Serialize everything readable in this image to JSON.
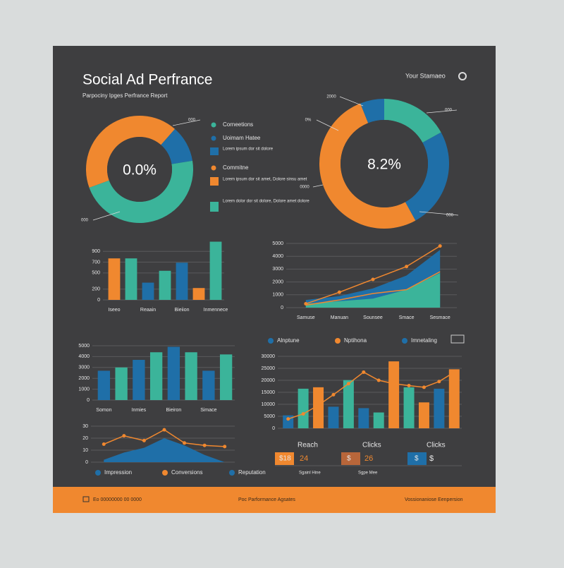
{
  "header": {
    "title": "Social Ad Perfrance",
    "subtitle": "Parpociny Ipges Perfrance Report",
    "account": "Your Stamaeo"
  },
  "panel": [
    {
      "label": "Corneetions",
      "color": "#3bb49a"
    },
    {
      "label": "Uoimam Hatee",
      "color": "#1f6fa8"
    },
    {
      "label": "Lorem ipsum dor sit dolore",
      "color": "#1f6fa8"
    },
    {
      "label": "Commitne",
      "color": "#f0882f"
    },
    {
      "label": "Lorem ipsum dor sit amet, Dolore sinsu amet",
      "color": "#f0882f"
    },
    {
      "label": "Lorem dolor dor sit dolore, Dolore amet dolore",
      "color": "#3bb49a"
    }
  ],
  "chart_data": [
    {
      "type": "pie",
      "center_label": "0.0%",
      "values": [
        42,
        11,
        47
      ],
      "colors": [
        "#f0882f",
        "#1f6fa8",
        "#3bb49a"
      ],
      "annotations": [
        "000",
        "000"
      ]
    },
    {
      "type": "pie",
      "center_label": "8.2%",
      "values": [
        17,
        25,
        52,
        6
      ],
      "colors": [
        "#3bb49a",
        "#1f6fa8",
        "#f0882f",
        "#1f6fa8"
      ],
      "annotations": [
        "2000",
        "000",
        "0%",
        "0000",
        "000"
      ]
    },
    {
      "type": "bar",
      "categories": [
        "Iseeo",
        null,
        "Reaain",
        null,
        "Bieiion",
        null,
        "Inmennece"
      ],
      "ylim": [
        0,
        1100
      ],
      "yticks": [
        0,
        200,
        500,
        700,
        900
      ],
      "grid": true,
      "series": [
        {
          "kind": "bar",
          "values": [
            770,
            770,
            320,
            540,
            690,
            220,
            1080
          ],
          "colors": [
            "#f0882f",
            "#3bb49a",
            "#1f6fa8",
            "#3bb49a",
            "#1f6fa8",
            "#f0882f",
            "#3bb49a"
          ]
        }
      ]
    },
    {
      "type": "line",
      "categories": [
        "Samuse",
        "Manuan",
        "Sounsee",
        "Smace",
        "Sesmace"
      ],
      "ylim": [
        0,
        5000
      ],
      "yticks": [
        0,
        1000,
        2000,
        3000,
        4000,
        5000
      ],
      "grid": true,
      "series": [
        {
          "kind": "area",
          "color": "#1f6fa8",
          "values": [
            600,
            900,
            1500,
            2500,
            4500
          ]
        },
        {
          "kind": "area",
          "color": "#3bb49a",
          "values": [
            300,
            500,
            700,
            1400,
            2700
          ]
        },
        {
          "kind": "line",
          "color": "#f0882f",
          "values": [
            300,
            1200,
            2200,
            3200,
            4800
          ],
          "markers": true
        },
        {
          "kind": "line",
          "color": "#f0882f",
          "values": [
            200,
            600,
            1100,
            1400,
            2800
          ]
        }
      ]
    },
    {
      "type": "bar",
      "categories": [
        "Somon",
        null,
        "Inmies",
        null,
        "Bieiron",
        null,
        "Simace",
        null
      ],
      "ylim": [
        0,
        5000
      ],
      "yticks": [
        0,
        1000,
        2000,
        3000,
        4000,
        5000
      ],
      "grid": true,
      "series": [
        {
          "kind": "bar",
          "values": [
            2700,
            3000,
            3700,
            4400,
            4900,
            4400,
            2700,
            4200
          ],
          "colors": [
            "#1f6fa8",
            "#3bb49a",
            "#1f6fa8",
            "#3bb49a",
            "#1f6fa8",
            "#3bb49a",
            "#1f6fa8",
            "#3bb49a"
          ]
        }
      ]
    },
    {
      "type": "line",
      "ylim": [
        0,
        30
      ],
      "yticks": [
        0,
        10,
        20,
        30
      ],
      "grid": true,
      "legend": [
        {
          "name": "Impression",
          "color": "#1f6fa8"
        },
        {
          "name": "Conversions",
          "color": "#f0882f"
        },
        {
          "name": "Reputation",
          "color": "#1f6fa8"
        }
      ],
      "series": [
        {
          "kind": "area",
          "color": "#1f6fa8",
          "values": [
            2,
            8,
            12,
            20,
            14,
            6,
            0
          ]
        },
        {
          "kind": "line",
          "color": "#f0882f",
          "values": [
            15,
            22,
            18,
            27,
            16,
            14,
            13
          ],
          "markers": true
        }
      ]
    },
    {
      "type": "bar",
      "ylim": [
        0,
        30000
      ],
      "yticks": [
        0,
        5000,
        10000,
        15000,
        20000,
        25000,
        30000
      ],
      "grid": true,
      "legend": [
        {
          "name": "Alnptune",
          "color": "#1f6fa8"
        },
        {
          "name": "Nptihona",
          "color": "#f0882f"
        },
        {
          "name": "Imnetaling",
          "color": "#1f6fa8"
        }
      ],
      "series": [
        {
          "kind": "bar",
          "values": [
            5400,
            16500,
            17100,
            9000,
            20100,
            8400,
            6600,
            27900,
            17100,
            10800,
            16500,
            24600
          ],
          "colors": [
            "#1f6fa8",
            "#3bb49a",
            "#f0882f",
            "#1f6fa8",
            "#3bb49a",
            "#1f6fa8",
            "#3bb49a",
            "#f0882f",
            "#3bb49a",
            "#f0882f",
            "#1f6fa8",
            "#f0882f"
          ]
        },
        {
          "kind": "line",
          "color": "#f0882f",
          "values": [
            3900,
            6000,
            9600,
            14000,
            18600,
            23400,
            20000,
            18600,
            17800,
            17100,
            19500,
            23400
          ],
          "markers": true
        }
      ]
    }
  ],
  "kpis": [
    {
      "label": "Reach",
      "badge": "$18",
      "value": "24",
      "note": "Sgainl Hine"
    },
    {
      "label": "Clicks",
      "badge": "$",
      "value": "26",
      "note": "Sgpe Mee"
    },
    {
      "label": "Clicks",
      "badge": "$",
      "value": "$"
    }
  ],
  "footer": [
    "Eo 00000000 00 0000",
    "Poc Parformance Agsates",
    "Vossionaniose Eenpersion"
  ]
}
